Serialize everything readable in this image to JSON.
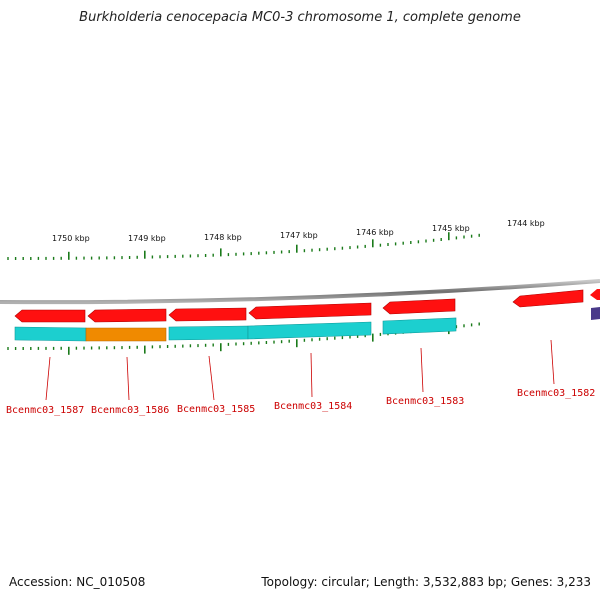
{
  "title": "Burkholderia cenocepacia MC0-3 chromosome 1, complete genome",
  "footer": {
    "accession": "Accession: NC_010508",
    "summary": "Topology: circular; Length: 3,532,883 bp; Genes: 3,233"
  },
  "colors": {
    "gene_forward": "#ff1010",
    "gene_cds": "#1ccfcf",
    "gene_highlight": "#f08a00",
    "gene_other": "#4a3a8a",
    "tick": "#1a7a1a",
    "backbone": "#8a8a8a",
    "label": "#cc0000"
  },
  "ruler_labels": [
    "1750 kbp",
    "1749 kbp",
    "1748 kbp",
    "1747 kbp",
    "1746 kbp",
    "1745 kbp",
    "1744 kbp"
  ],
  "genes": [
    {
      "locus": "Bcenmc03_1587",
      "cds_color": "cyan"
    },
    {
      "locus": "Bcenmc03_1586",
      "cds_color": "orange"
    },
    {
      "locus": "Bcenmc03_1585",
      "cds_color": "cyan"
    },
    {
      "locus": "Bcenmc03_1584",
      "cds_color": "cyan"
    },
    {
      "locus": "Bcenmc03_1583",
      "cds_color": "cyan"
    },
    {
      "locus": "Bcenmc03_1582",
      "cds_color": "none"
    }
  ]
}
